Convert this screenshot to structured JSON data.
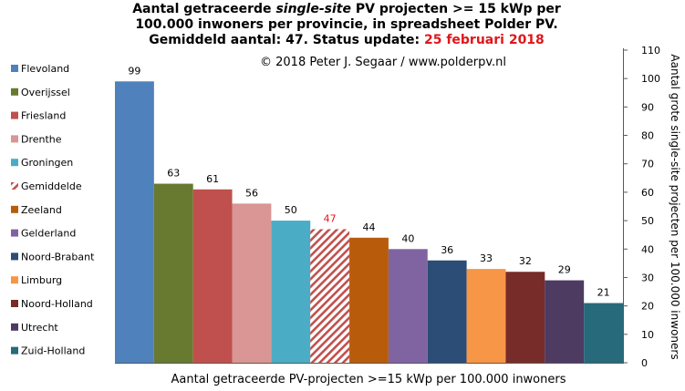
{
  "title": {
    "line1_a": "Aantal getraceerde ",
    "line1_b": "single-site",
    "line1_c": " PV projecten >= 15 kWp per",
    "line2": "100.000 inwoners per provincie, in spreadsheet Polder PV.",
    "line3_a": "Gemiddeld aantal: 47. Status update: ",
    "line3_b": "25 februari 2018"
  },
  "copyright": "© 2018 Peter J. Segaar / www.polderpv.nl",
  "colors": {
    "accent_red": "#e0161b",
    "axis": "#595959"
  },
  "chart_data": {
    "type": "bar",
    "xlabel": "Aantal getraceerde PV-projecten >=15 kWp per 100.000 inwoners",
    "ylabel": "Aantal grote single-site projecten per 100.000 inwoners",
    "ylim": [
      0,
      110
    ],
    "y_ticks": [
      0,
      10,
      20,
      30,
      40,
      50,
      60,
      70,
      80,
      90,
      100,
      110
    ],
    "y_axis_side": "right",
    "legend_position": "left",
    "grid": false,
    "categories": [
      "Flevoland",
      "Overijssel",
      "Friesland",
      "Drenthe",
      "Groningen",
      "Gemiddelde",
      "Zeeland",
      "Gelderland",
      "Noord-Brabant",
      "Limburg",
      "Noord-Holland",
      "Utrecht",
      "Zuid-Holland"
    ],
    "values": [
      99,
      63,
      61,
      56,
      50,
      47,
      44,
      40,
      36,
      33,
      32,
      29,
      21
    ],
    "colors": [
      "#4f81bd",
      "#677a30",
      "#c0504d",
      "#d99694",
      "#4bacc6",
      "#c0504d",
      "#b85c0b",
      "#8064a2",
      "#2c4d75",
      "#f79646",
      "#772c2a",
      "#4d3b62",
      "#276a7c"
    ],
    "hatched": [
      false,
      false,
      false,
      false,
      false,
      true,
      false,
      false,
      false,
      false,
      false,
      false,
      false
    ],
    "label_colors": [
      "#000000",
      "#000000",
      "#000000",
      "#000000",
      "#000000",
      "#e0161b",
      "#000000",
      "#000000",
      "#000000",
      "#000000",
      "#000000",
      "#000000",
      "#000000"
    ]
  }
}
